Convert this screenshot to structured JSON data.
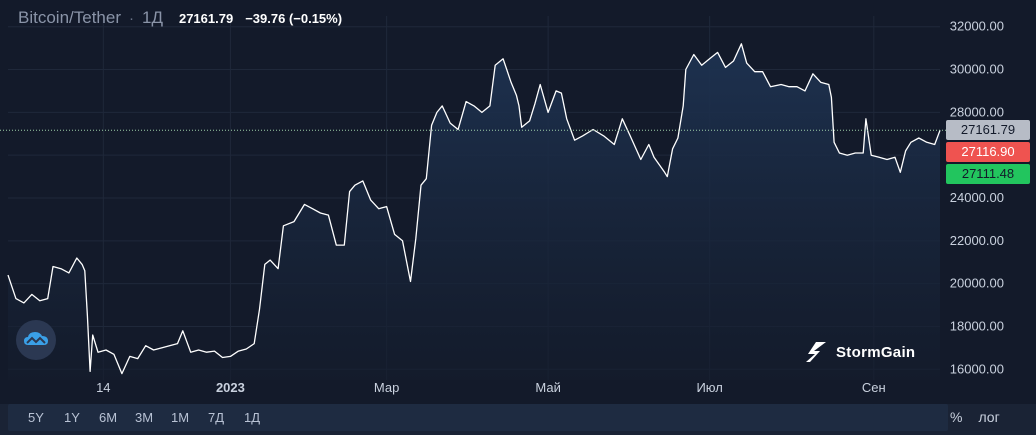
{
  "header": {
    "symbol": "Bitcoin/Tether",
    "separator": "·",
    "timeframe": "1Д",
    "last_price": "27161.79",
    "change": "−39.76 (−0.15%)"
  },
  "price_badges": [
    {
      "label": "27161.79",
      "value": 27161.79,
      "bg": "#b7bcc6",
      "fg": "#131a2a"
    },
    {
      "label": "27116.90",
      "value": 27116.9,
      "bg": "#ef5350",
      "fg": "#ffffff"
    },
    {
      "label": "27111.48",
      "value": 27111.48,
      "bg": "#22c55e",
      "fg": "#131a2a"
    }
  ],
  "toolbar": {
    "ranges": [
      "5Y",
      "1Y",
      "6M",
      "3M",
      "1M",
      "7Д",
      "1Д"
    ],
    "percent_label": "%",
    "log_label": "лог"
  },
  "brand": {
    "name": "StormGain"
  },
  "colors": {
    "background": "#131a2a",
    "line": "#ffffff",
    "area_top": "#1e3352",
    "grid": "#1f283a",
    "last_price_line": "#9ecfa8"
  },
  "chart_data": {
    "type": "area",
    "title": "Bitcoin/Tether",
    "xlabel": "",
    "ylabel": "",
    "ylim": [
      15500,
      32500
    ],
    "y_ticks": [
      16000,
      18000,
      20000,
      22000,
      24000,
      26000,
      28000,
      30000,
      32000
    ],
    "y_tick_labels": [
      "16000.00",
      "18000.00",
      "20000.00",
      "22000.00",
      "24000.00",
      "26000.00",
      "28000.00",
      "30000.00",
      "32000.00"
    ],
    "x_ticks": [
      {
        "date": "2022-11-14",
        "label": "14"
      },
      {
        "date": "2023-01-01",
        "label": "2023"
      },
      {
        "date": "2023-03-01",
        "label": "Мар"
      },
      {
        "date": "2023-05-01",
        "label": "Май"
      },
      {
        "date": "2023-07-01",
        "label": "Июл"
      },
      {
        "date": "2023-09-01",
        "label": "Сен"
      }
    ],
    "x_range": [
      "2022-10-09",
      "2023-09-26"
    ],
    "grid": true,
    "series": [
      {
        "values": [
          [
            "2022-10-09",
            20400
          ],
          [
            "2022-10-12",
            19300
          ],
          [
            "2022-10-15",
            19100
          ],
          [
            "2022-10-18",
            19500
          ],
          [
            "2022-10-21",
            19200
          ],
          [
            "2022-10-24",
            19300
          ],
          [
            "2022-10-26",
            20800
          ],
          [
            "2022-10-29",
            20700
          ],
          [
            "2022-11-01",
            20500
          ],
          [
            "2022-11-04",
            21200
          ],
          [
            "2022-11-06",
            20900
          ],
          [
            "2022-11-07",
            20600
          ],
          [
            "2022-11-08",
            18500
          ],
          [
            "2022-11-09",
            15900
          ],
          [
            "2022-11-10",
            17600
          ],
          [
            "2022-11-12",
            16800
          ],
          [
            "2022-11-15",
            16900
          ],
          [
            "2022-11-18",
            16700
          ],
          [
            "2022-11-21",
            15800
          ],
          [
            "2022-11-24",
            16600
          ],
          [
            "2022-11-27",
            16500
          ],
          [
            "2022-11-30",
            17100
          ],
          [
            "2022-12-03",
            16900
          ],
          [
            "2022-12-06",
            17000
          ],
          [
            "2022-12-09",
            17100
          ],
          [
            "2022-12-12",
            17200
          ],
          [
            "2022-12-14",
            17800
          ],
          [
            "2022-12-17",
            16800
          ],
          [
            "2022-12-20",
            16900
          ],
          [
            "2022-12-23",
            16800
          ],
          [
            "2022-12-26",
            16850
          ],
          [
            "2022-12-29",
            16550
          ],
          [
            "2023-01-01",
            16600
          ],
          [
            "2023-01-04",
            16850
          ],
          [
            "2023-01-07",
            16950
          ],
          [
            "2023-01-10",
            17200
          ],
          [
            "2023-01-12",
            18800
          ],
          [
            "2023-01-14",
            20900
          ],
          [
            "2023-01-16",
            21100
          ],
          [
            "2023-01-19",
            20700
          ],
          [
            "2023-01-21",
            22700
          ],
          [
            "2023-01-25",
            22900
          ],
          [
            "2023-01-29",
            23700
          ],
          [
            "2023-02-01",
            23500
          ],
          [
            "2023-02-04",
            23300
          ],
          [
            "2023-02-07",
            23200
          ],
          [
            "2023-02-10",
            21800
          ],
          [
            "2023-02-13",
            21800
          ],
          [
            "2023-02-15",
            24300
          ],
          [
            "2023-02-17",
            24600
          ],
          [
            "2023-02-20",
            24800
          ],
          [
            "2023-02-23",
            23900
          ],
          [
            "2023-02-26",
            23500
          ],
          [
            "2023-03-01",
            23600
          ],
          [
            "2023-03-04",
            22300
          ],
          [
            "2023-03-07",
            22000
          ],
          [
            "2023-03-10",
            20100
          ],
          [
            "2023-03-12",
            22100
          ],
          [
            "2023-03-14",
            24600
          ],
          [
            "2023-03-16",
            24900
          ],
          [
            "2023-03-18",
            27400
          ],
          [
            "2023-03-20",
            28000
          ],
          [
            "2023-03-22",
            28300
          ],
          [
            "2023-03-25",
            27500
          ],
          [
            "2023-03-28",
            27200
          ],
          [
            "2023-03-31",
            28500
          ],
          [
            "2023-04-03",
            28300
          ],
          [
            "2023-04-06",
            28000
          ],
          [
            "2023-04-09",
            28300
          ],
          [
            "2023-04-11",
            30200
          ],
          [
            "2023-04-14",
            30500
          ],
          [
            "2023-04-17",
            29400
          ],
          [
            "2023-04-19",
            28800
          ],
          [
            "2023-04-20",
            28300
          ],
          [
            "2023-04-21",
            27300
          ],
          [
            "2023-04-24",
            27600
          ],
          [
            "2023-04-26",
            28400
          ],
          [
            "2023-04-28",
            29300
          ],
          [
            "2023-05-01",
            28000
          ],
          [
            "2023-05-04",
            29000
          ],
          [
            "2023-05-06",
            28900
          ],
          [
            "2023-05-08",
            27700
          ],
          [
            "2023-05-11",
            26700
          ],
          [
            "2023-05-14",
            26900
          ],
          [
            "2023-05-18",
            27200
          ],
          [
            "2023-05-22",
            26900
          ],
          [
            "2023-05-26",
            26500
          ],
          [
            "2023-05-29",
            27700
          ],
          [
            "2023-06-01",
            26900
          ],
          [
            "2023-06-05",
            25800
          ],
          [
            "2023-06-08",
            26500
          ],
          [
            "2023-06-10",
            25900
          ],
          [
            "2023-06-14",
            25200
          ],
          [
            "2023-06-15",
            25000
          ],
          [
            "2023-06-17",
            26300
          ],
          [
            "2023-06-19",
            26800
          ],
          [
            "2023-06-21",
            28300
          ],
          [
            "2023-06-22",
            30000
          ],
          [
            "2023-06-25",
            30700
          ],
          [
            "2023-06-28",
            30200
          ],
          [
            "2023-07-01",
            30500
          ],
          [
            "2023-07-04",
            30800
          ],
          [
            "2023-07-07",
            30100
          ],
          [
            "2023-07-10",
            30400
          ],
          [
            "2023-07-13",
            31200
          ],
          [
            "2023-07-15",
            30300
          ],
          [
            "2023-07-18",
            29900
          ],
          [
            "2023-07-21",
            29900
          ],
          [
            "2023-07-24",
            29200
          ],
          [
            "2023-07-28",
            29300
          ],
          [
            "2023-07-31",
            29200
          ],
          [
            "2023-08-03",
            29200
          ],
          [
            "2023-08-06",
            29000
          ],
          [
            "2023-08-09",
            29800
          ],
          [
            "2023-08-12",
            29400
          ],
          [
            "2023-08-15",
            29300
          ],
          [
            "2023-08-16",
            28700
          ],
          [
            "2023-08-17",
            26600
          ],
          [
            "2023-08-19",
            26100
          ],
          [
            "2023-08-22",
            26000
          ],
          [
            "2023-08-25",
            26100
          ],
          [
            "2023-08-28",
            26100
          ],
          [
            "2023-08-29",
            27700
          ],
          [
            "2023-08-31",
            26000
          ],
          [
            "2023-09-03",
            25900
          ],
          [
            "2023-09-06",
            25800
          ],
          [
            "2023-09-09",
            25900
          ],
          [
            "2023-09-11",
            25200
          ],
          [
            "2023-09-13",
            26200
          ],
          [
            "2023-09-15",
            26600
          ],
          [
            "2023-09-18",
            26800
          ],
          [
            "2023-09-21",
            26600
          ],
          [
            "2023-09-24",
            26500
          ],
          [
            "2023-09-26",
            27162
          ]
        ]
      }
    ],
    "last_price_line": 27161.79
  }
}
